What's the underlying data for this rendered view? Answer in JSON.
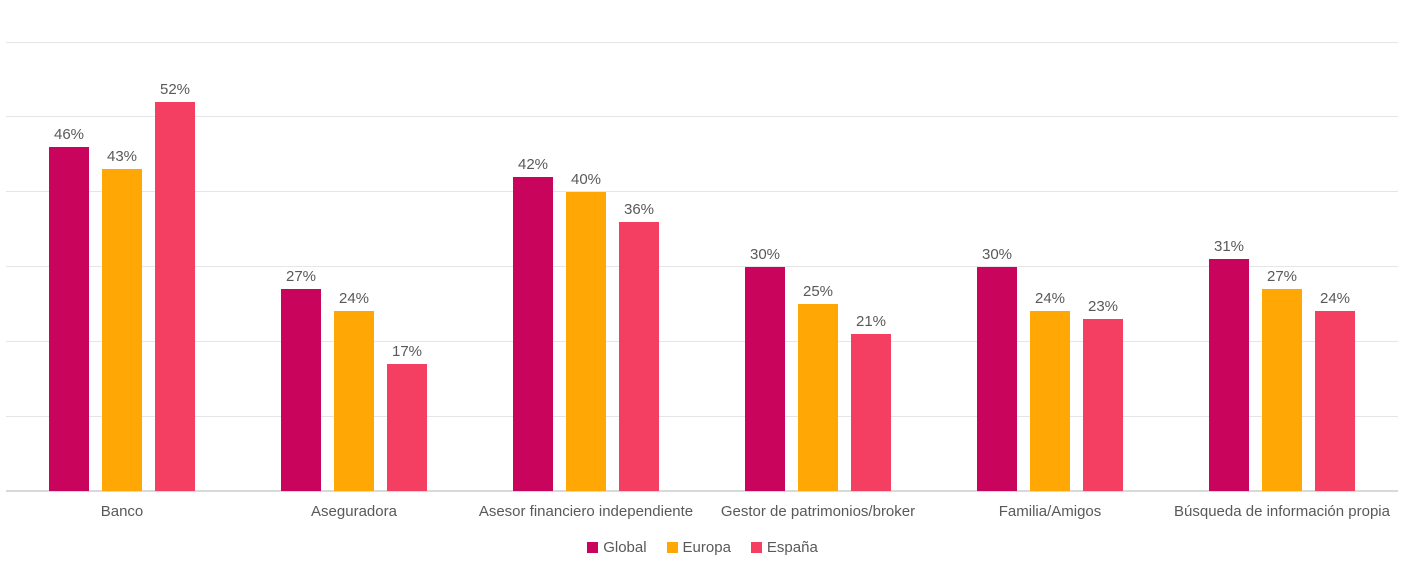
{
  "chart_data": {
    "type": "bar",
    "title": "",
    "xlabel": "",
    "ylabel": "",
    "categories": [
      "Banco",
      "Aseguradora",
      "Asesor financiero independiente",
      "Gestor de patrimonios/broker",
      "Familia/Amigos",
      "Búsqueda de información propia"
    ],
    "series": [
      {
        "name": "Global",
        "color": "#C9045C",
        "values": [
          46,
          27,
          42,
          30,
          30,
          31
        ]
      },
      {
        "name": "Europa",
        "color": "#FFA805",
        "values": [
          43,
          24,
          40,
          25,
          24,
          27
        ]
      },
      {
        "name": "España",
        "color": "#F43F63",
        "values": [
          52,
          17,
          36,
          21,
          23,
          24
        ]
      }
    ],
    "value_suffix": "%",
    "data_labels": [
      "46%",
      "43%",
      "52%",
      "27%",
      "24%",
      "17%",
      "42%",
      "40%",
      "36%",
      "30%",
      "25%",
      "21%",
      "30%",
      "24%",
      "23%",
      "31%",
      "27%",
      "24%"
    ],
    "ylim": [
      0,
      60
    ],
    "grid_step": 10,
    "grid": true,
    "y_tick_labels_visible": false,
    "legend_position": "bottom-center"
  },
  "theme": {
    "background": "#FFFFFF",
    "gridline_color": "#E6E6E6",
    "axis_line_color": "#D9D9D9",
    "label_text_color": "#595959"
  }
}
